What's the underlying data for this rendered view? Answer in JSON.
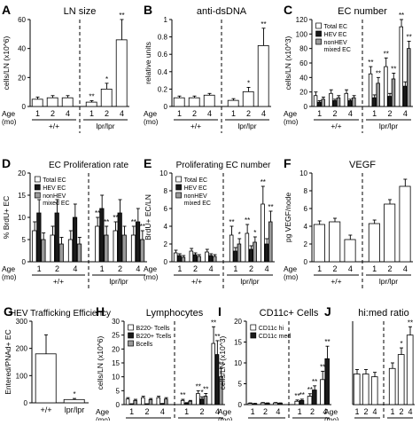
{
  "figure": {
    "group_left": "+/+",
    "group_right": "lpr/lpr",
    "age_label": "Age",
    "age_unit": "(mo)"
  },
  "chart_data": [
    {
      "id": "A",
      "letter": "A",
      "type": "bar",
      "title": "LN size",
      "ylabel": "cells/LN (x10^6)",
      "ylim": [
        0,
        60
      ],
      "yticks": [
        0,
        20,
        40,
        60
      ],
      "ages": [
        "1",
        "2",
        "4",
        "1",
        "2",
        "4"
      ],
      "groups": [
        "+/+",
        "lpr/lpr"
      ],
      "series": [
        {
          "fill": "white",
          "values": [
            5,
            6,
            6,
            3,
            12,
            46
          ],
          "errors": [
            1.5,
            1.5,
            1.5,
            1,
            4,
            16
          ],
          "marks": [
            "",
            "",
            "",
            "**",
            "*",
            "**"
          ]
        }
      ]
    },
    {
      "id": "B",
      "letter": "B",
      "type": "bar",
      "title": "anti-dsDNA",
      "ylabel": "relative units",
      "ylim": [
        0,
        1
      ],
      "yticks": [
        0,
        0.2,
        0.4,
        0.6,
        0.8,
        1
      ],
      "ages": [
        "1",
        "2",
        "4",
        "1",
        "2",
        "4"
      ],
      "groups": [
        "+/+",
        "lpr/lpr"
      ],
      "series": [
        {
          "fill": "white",
          "values": [
            0.1,
            0.1,
            0.13,
            0.07,
            0.17,
            0.7
          ],
          "errors": [
            0.02,
            0.02,
            0.02,
            0.02,
            0.05,
            0.2
          ],
          "marks": [
            "",
            "",
            "",
            "",
            "*",
            "**"
          ]
        }
      ]
    },
    {
      "id": "C",
      "letter": "C",
      "type": "bar",
      "title": "EC number",
      "ylabel": "cells/LN (x10^3)",
      "ylim": [
        0,
        120
      ],
      "yticks": [
        0,
        20,
        40,
        60,
        80,
        100,
        120
      ],
      "ages": [
        "1",
        "2",
        "4",
        "1",
        "2",
        "4"
      ],
      "groups": [
        "+/+",
        "lpr/lpr"
      ],
      "series": [
        {
          "name": "Total EC",
          "fill": "white",
          "values": [
            15,
            18,
            18,
            45,
            55,
            110
          ],
          "errors": [
            5,
            5,
            5,
            10,
            12,
            12
          ],
          "marks": [
            "",
            "",
            "",
            "**",
            "**",
            "**"
          ]
        },
        {
          "name": "HEV EC",
          "fill": "black",
          "values": [
            6,
            8,
            8,
            12,
            14,
            28
          ],
          "errors": [
            2,
            2,
            2,
            4,
            4,
            6
          ],
          "marks": [
            "",
            "",
            "",
            "",
            "",
            ""
          ]
        },
        {
          "name": "nonHEV mixed EC",
          "fill": "gray",
          "values": [
            10,
            12,
            12,
            32,
            38,
            80
          ],
          "errors": [
            3,
            3,
            3,
            8,
            8,
            10
          ],
          "marks": [
            "",
            "",
            "",
            "**",
            "**",
            "**"
          ]
        }
      ]
    },
    {
      "id": "D",
      "letter": "D",
      "type": "bar",
      "title": "EC Proliferation rate",
      "ylabel": "% BrdU+ EC",
      "ylim": [
        0,
        20
      ],
      "yticks": [
        0,
        5,
        10,
        15,
        20
      ],
      "ages": [
        "1",
        "2",
        "4",
        "1",
        "2",
        "4"
      ],
      "groups": [
        "+/+",
        "lpr/lpr"
      ],
      "series": [
        {
          "name": "Total EC",
          "fill": "white",
          "values": [
            7,
            6,
            5,
            8,
            7,
            6
          ],
          "errors": [
            2,
            2,
            2,
            2,
            2,
            2
          ],
          "marks": [
            "",
            "",
            "",
            "**",
            "**",
            "**"
          ]
        },
        {
          "name": "HEV EC",
          "fill": "black",
          "values": [
            11,
            11,
            10,
            12,
            11,
            9
          ],
          "errors": [
            3,
            3,
            3,
            3,
            3,
            3
          ],
          "marks": [
            "",
            "",
            "",
            "",
            "",
            ""
          ]
        },
        {
          "name": "nonHEV mixed EC",
          "fill": "gray",
          "values": [
            5,
            4,
            4,
            6,
            6,
            5
          ],
          "errors": [
            1.5,
            1.5,
            1.5,
            2,
            2,
            2
          ],
          "marks": [
            "",
            "",
            "",
            "**",
            "",
            "**"
          ]
        }
      ]
    },
    {
      "id": "E",
      "letter": "E",
      "type": "bar",
      "title": "Proliferating EC number",
      "ylabel": "BrdU+ EC/LN",
      "ylim": [
        0,
        10
      ],
      "yticks": [
        0,
        2,
        4,
        6,
        8,
        10
      ],
      "ages": [
        "1",
        "2",
        "4",
        "1",
        "2",
        "4"
      ],
      "groups": [
        "+/+",
        "lpr/lpr"
      ],
      "series": [
        {
          "name": "Total EC",
          "fill": "white",
          "values": [
            1,
            1.2,
            1.1,
            3,
            3.2,
            6.5
          ],
          "errors": [
            0.3,
            0.3,
            0.3,
            1,
            1,
            2
          ],
          "marks": [
            "",
            "",
            "",
            "**",
            "**",
            "**"
          ]
        },
        {
          "name": "HEV EC",
          "fill": "black",
          "values": [
            0.7,
            0.8,
            0.7,
            1.2,
            1.4,
            2
          ],
          "errors": [
            0.2,
            0.2,
            0.2,
            0.4,
            0.4,
            0.6
          ],
          "marks": [
            "",
            "",
            "",
            "",
            "",
            ""
          ]
        },
        {
          "name": "nonHEV mixed EC",
          "fill": "gray",
          "values": [
            0.5,
            0.6,
            0.6,
            2,
            2.2,
            4.5
          ],
          "errors": [
            0.2,
            0.2,
            0.2,
            0.6,
            0.6,
            1.2
          ],
          "marks": [
            "",
            "",
            "",
            "*",
            "*",
            "**"
          ]
        }
      ]
    },
    {
      "id": "F",
      "letter": "F",
      "type": "bar",
      "title": "VEGF",
      "ylabel": "pg VEGF/node",
      "ylim": [
        0,
        10
      ],
      "yticks": [
        0,
        2,
        4,
        6,
        8,
        10
      ],
      "ages": [
        "1",
        "2",
        "4",
        "1",
        "2",
        "4"
      ],
      "groups": [
        "+/+",
        "lpr/lpr"
      ],
      "series": [
        {
          "fill": "white",
          "values": [
            4.2,
            4.5,
            2.5,
            4.3,
            6.5,
            8.5
          ],
          "errors": [
            0.4,
            0.4,
            0.5,
            0.4,
            0.5,
            0.8
          ],
          "marks": [
            "",
            "",
            "",
            "",
            "",
            ""
          ]
        }
      ]
    },
    {
      "id": "G",
      "letter": "G",
      "type": "bar",
      "title": "HEV Trafficking Efficiency",
      "ylabel": "Entered/PNAd+ EC",
      "ylim": [
        0,
        300
      ],
      "yticks": [
        0,
        100,
        200,
        300
      ],
      "ages": [],
      "categories": [
        "+/+",
        "lpr/lpr"
      ],
      "series": [
        {
          "fill": "white",
          "values": [
            180,
            12
          ],
          "errors": [
            70,
            4
          ],
          "marks": [
            "",
            "*"
          ]
        }
      ]
    },
    {
      "id": "H",
      "letter": "H",
      "type": "bar",
      "title": "Lymphocytes",
      "ylabel": "cells/LN (x10^6)",
      "ylim": [
        0,
        30
      ],
      "yticks": [
        0,
        5,
        10,
        15,
        20,
        25,
        30
      ],
      "ages": [
        "1",
        "2",
        "4",
        "1",
        "2",
        "4"
      ],
      "groups": [
        "+/+",
        "lpr/lpr"
      ],
      "series": [
        {
          "name": "B220- Tcells",
          "fill": "white",
          "values": [
            2,
            2.5,
            2.5,
            1.5,
            4,
            22
          ],
          "errors": [
            0.5,
            0.5,
            0.5,
            0.4,
            1,
            6
          ],
          "marks": [
            "",
            "",
            "",
            "**",
            "**",
            "**"
          ]
        },
        {
          "name": "B220+ Tcells",
          "fill": "black",
          "values": [
            0.2,
            0.2,
            0.3,
            0.5,
            2,
            18
          ],
          "errors": [
            0.1,
            0.1,
            0.1,
            0.2,
            0.8,
            5
          ],
          "marks": [
            "",
            "",
            "",
            "",
            "*",
            "**"
          ]
        },
        {
          "name": "Bcells",
          "fill": "gray",
          "values": [
            1.5,
            1.8,
            2,
            1.2,
            3,
            10
          ],
          "errors": [
            0.4,
            0.4,
            0.5,
            0.3,
            1,
            3
          ],
          "marks": [
            "",
            "",
            "",
            "",
            "**",
            "**"
          ]
        }
      ]
    },
    {
      "id": "I",
      "letter": "I",
      "type": "bar",
      "title": "CD11c+ Cells",
      "ylabel": "cells/LN (x10^3)",
      "ylim": [
        0,
        20
      ],
      "yticks": [
        0,
        5,
        10,
        15,
        20
      ],
      "ages": [
        "1",
        "2",
        "4",
        "1",
        "2",
        "4"
      ],
      "groups": [
        "+/+",
        "lpr/lpr"
      ],
      "series": [
        {
          "name": "CD11c hi",
          "fill": "white",
          "values": [
            0.3,
            0.4,
            0.4,
            0.8,
            2,
            6
          ],
          "errors": [
            0.1,
            0.1,
            0.1,
            0.3,
            0.6,
            2
          ],
          "marks": [
            "",
            "",
            "",
            "**",
            "**",
            "**"
          ]
        },
        {
          "name": "CD11c med",
          "fill": "black",
          "values": [
            0.2,
            0.3,
            0.3,
            1,
            3.5,
            11
          ],
          "errors": [
            0.1,
            0.1,
            0.1,
            0.3,
            1,
            3
          ],
          "marks": [
            "",
            "",
            "",
            "**",
            "**",
            "**"
          ]
        }
      ]
    },
    {
      "id": "J",
      "letter": "J",
      "type": "bar",
      "title": "hi:med ratio",
      "ylabel": "",
      "ylim": [
        0,
        1.5
      ],
      "yticks": [],
      "ages": [
        "1",
        "2",
        "4",
        "1",
        "2",
        "4"
      ],
      "groups": [
        "+/+",
        "lpr/lpr"
      ],
      "series": [
        {
          "fill": "white",
          "values": [
            0.55,
            0.55,
            0.5,
            0.65,
            0.9,
            1.25
          ],
          "errors": [
            0.08,
            0.08,
            0.08,
            0.1,
            0.12,
            0.15
          ],
          "marks": [
            "",
            "",
            "",
            "",
            "*",
            "**"
          ]
        }
      ]
    }
  ]
}
